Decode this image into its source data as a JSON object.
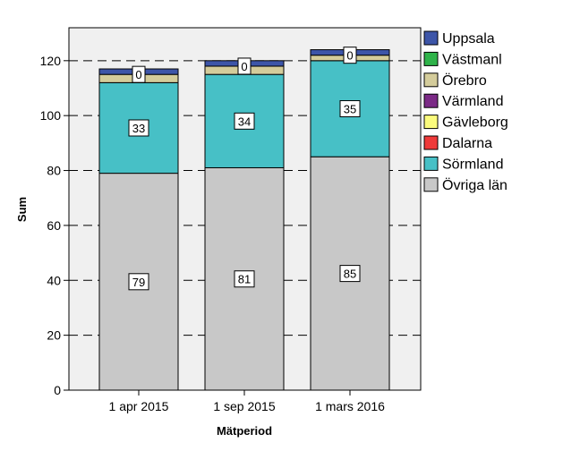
{
  "chart_data": {
    "type": "bar",
    "stacked": true,
    "categories": [
      "1 apr 2015",
      "1 sep 2015",
      "1 mars 2016"
    ],
    "xlabel": "Mätperiod",
    "ylabel": "Sum",
    "ylim": [
      0,
      132
    ],
    "yticks": [
      0,
      20,
      40,
      60,
      80,
      100,
      120
    ],
    "grid": "horizontal dashed",
    "legend_position": "right",
    "series": [
      {
        "name": "Övriga län",
        "values": [
          79,
          81,
          85
        ],
        "color": "#c8c8c8",
        "labels": [
          "79",
          "81",
          "85"
        ]
      },
      {
        "name": "Sörmland",
        "values": [
          33,
          34,
          35
        ],
        "color": "#47c0c6",
        "labels": [
          "33",
          "34",
          "35"
        ]
      },
      {
        "name": "Dalarna",
        "values": [
          0,
          0,
          0
        ],
        "color": "#ef3a3a",
        "labels": null
      },
      {
        "name": "Gävleborg",
        "values": [
          0,
          0,
          0
        ],
        "color": "#fbfb7d",
        "labels": null
      },
      {
        "name": "Värmland",
        "values": [
          0,
          0,
          0
        ],
        "color": "#7b2a86",
        "labels": null
      },
      {
        "name": "Örebro",
        "values": [
          3,
          3,
          2
        ],
        "color": "#d4cc9b",
        "labels": null
      },
      {
        "name": "Västmanl",
        "values": [
          0,
          0,
          0
        ],
        "color": "#2fb34a",
        "labels": [
          "0",
          "0",
          "0"
        ]
      },
      {
        "name": "Uppsala",
        "values": [
          2,
          2,
          2
        ],
        "color": "#3d55a8",
        "labels": null
      }
    ],
    "legend_order": [
      "Uppsala",
      "Västmanl",
      "Örebro",
      "Värmland",
      "Gävleborg",
      "Dalarna",
      "Sörmland",
      "Övriga län"
    ]
  }
}
